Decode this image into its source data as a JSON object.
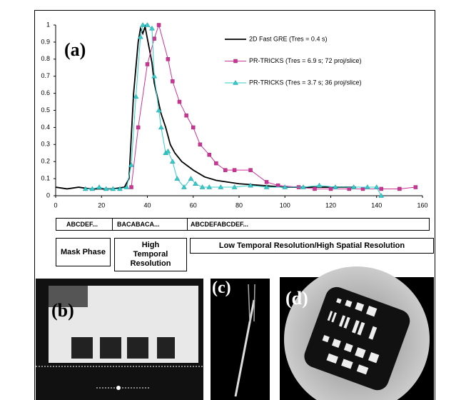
{
  "chart_data": {
    "type": "line",
    "label": "(a)",
    "xlim": [
      0,
      160
    ],
    "ylim": [
      0,
      1
    ],
    "xticks": [
      0,
      20,
      40,
      60,
      80,
      100,
      120,
      140,
      160
    ],
    "yticks": [
      0,
      0.1,
      0.2,
      0.3,
      0.4,
      0.5,
      0.6,
      0.7,
      0.8,
      0.9,
      1
    ],
    "series": [
      {
        "name": "2D Fast GRE  (Tres = 0.4 s)",
        "color": "#000000",
        "marker": null,
        "x": [
          0,
          5,
          10,
          15,
          20,
          25,
          30,
          32,
          34,
          36,
          37,
          38,
          39,
          40,
          41,
          42,
          43,
          44,
          46,
          48,
          50,
          52,
          55,
          60,
          65,
          70,
          80,
          90,
          100,
          110,
          120,
          131
        ],
        "values": [
          0.05,
          0.04,
          0.05,
          0.04,
          0.04,
          0.04,
          0.05,
          0.1,
          0.6,
          0.9,
          0.98,
          0.95,
          0.99,
          0.92,
          0.85,
          0.78,
          0.66,
          0.6,
          0.48,
          0.4,
          0.3,
          0.25,
          0.2,
          0.15,
          0.11,
          0.09,
          0.07,
          0.06,
          0.05,
          0.05,
          0.05,
          0.05
        ]
      },
      {
        "name": "PR-TRICKS (Tres = 6.9 s; 72 proj/slice)",
        "color": "#cc3399",
        "marker": "square",
        "x": [
          33,
          36,
          40,
          43,
          45,
          49,
          51,
          54,
          57,
          60,
          63,
          67,
          70,
          74,
          78,
          85,
          92,
          97,
          106,
          113,
          120,
          128,
          134,
          142,
          150,
          157
        ],
        "values": [
          0.05,
          0.4,
          0.77,
          0.92,
          1,
          0.8,
          0.67,
          0.55,
          0.47,
          0.4,
          0.3,
          0.24,
          0.19,
          0.15,
          0.15,
          0.15,
          0.08,
          0.06,
          0.05,
          0.04,
          0.04,
          0.04,
          0.04,
          0.04,
          0.04,
          0.05
        ]
      },
      {
        "name": "PR-TRICKS (Tres = 3.7 s; 36 proj/slice)",
        "color": "#33cccc",
        "marker": "triangle",
        "x": [
          13,
          16,
          19,
          22,
          25,
          28,
          31,
          33,
          35,
          37,
          38,
          40,
          42,
          43,
          45,
          46,
          48,
          49,
          51,
          53,
          56,
          59,
          61,
          64,
          67,
          72,
          78,
          85,
          92,
          100,
          108,
          115,
          122,
          130,
          136,
          140,
          142
        ],
        "values": [
          0.04,
          0.04,
          0.05,
          0.04,
          0.04,
          0.04,
          0.05,
          0.18,
          0.58,
          0.93,
          1,
          1,
          0.98,
          0.7,
          0.5,
          0.4,
          0.25,
          0.26,
          0.2,
          0.1,
          0.05,
          0.1,
          0.07,
          0.05,
          0.05,
          0.05,
          0.05,
          0.06,
          0.05,
          0.05,
          0.05,
          0.06,
          0.05,
          0.05,
          0.05,
          0.05,
          0
        ]
      }
    ]
  },
  "timeline": {
    "row1": [
      "ABCDEF...",
      "BACABACA...",
      "ABCDEFABCDEF..."
    ],
    "row2": [
      "Mask Phase",
      "High Temporal Resolution",
      "Low Temporal Resolution/High Spatial Resolution"
    ]
  },
  "panels": {
    "b": "(b)",
    "c": "(c)",
    "d": "(d)"
  }
}
